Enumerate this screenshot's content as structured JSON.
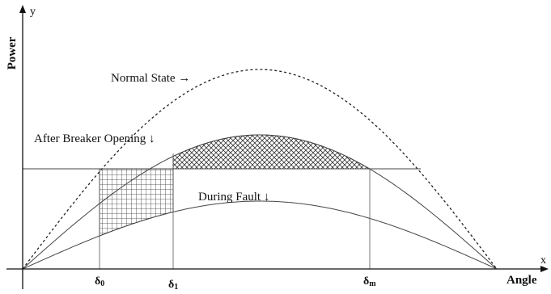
{
  "axes": {
    "x_letter": "x",
    "y_letter": "y",
    "x_name": "Angle",
    "y_name": "Power"
  },
  "curves": {
    "normal": {
      "label": "Normal State",
      "arrow": "→"
    },
    "after": {
      "label": "After Breaker Opening",
      "arrow": "↓"
    },
    "fault": {
      "label": "During Fault",
      "arrow": "↓"
    }
  },
  "markers": [
    {
      "base": "δ",
      "sub": "0"
    },
    {
      "base": "δ",
      "sub": "1"
    },
    {
      "base": "δ",
      "sub": "m"
    }
  ],
  "style": {
    "line_color": "#222222",
    "hatch_color": "#333333"
  }
}
